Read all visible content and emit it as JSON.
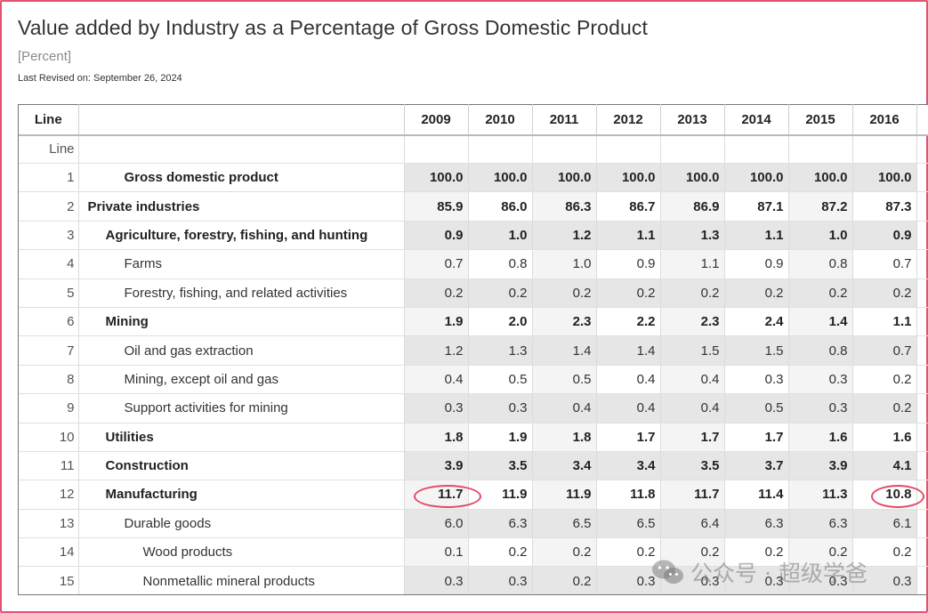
{
  "page": {
    "title": "Value added by Industry as a Percentage of Gross Domestic Product",
    "units": "[Percent]",
    "last_revised": "Last Revised on: September 26, 2024"
  },
  "table": {
    "header_line": "Line",
    "header_desc": "",
    "years": [
      "2009",
      "2010",
      "2011",
      "2012",
      "2013",
      "2014",
      "2015",
      "2016"
    ],
    "subheader_line": "Line",
    "rows": [
      {
        "line": "1",
        "desc": "Gross domestic product",
        "level": 2,
        "bold": true,
        "values": [
          "100.0",
          "100.0",
          "100.0",
          "100.0",
          "100.0",
          "100.0",
          "100.0",
          "100.0"
        ]
      },
      {
        "line": "2",
        "desc": "Private industries",
        "level": 0,
        "bold": true,
        "values": [
          "85.9",
          "86.0",
          "86.3",
          "86.7",
          "86.9",
          "87.1",
          "87.2",
          "87.3"
        ]
      },
      {
        "line": "3",
        "desc": "Agriculture, forestry, fishing, and hunting",
        "level": 1,
        "bold": true,
        "values": [
          "0.9",
          "1.0",
          "1.2",
          "1.1",
          "1.3",
          "1.1",
          "1.0",
          "0.9"
        ]
      },
      {
        "line": "4",
        "desc": "Farms",
        "level": 2,
        "bold": false,
        "values": [
          "0.7",
          "0.8",
          "1.0",
          "0.9",
          "1.1",
          "0.9",
          "0.8",
          "0.7"
        ]
      },
      {
        "line": "5",
        "desc": "Forestry, fishing, and related activities",
        "level": 2,
        "bold": false,
        "values": [
          "0.2",
          "0.2",
          "0.2",
          "0.2",
          "0.2",
          "0.2",
          "0.2",
          "0.2"
        ]
      },
      {
        "line": "6",
        "desc": "Mining",
        "level": 1,
        "bold": true,
        "values": [
          "1.9",
          "2.0",
          "2.3",
          "2.2",
          "2.3",
          "2.4",
          "1.4",
          "1.1"
        ]
      },
      {
        "line": "7",
        "desc": "Oil and gas extraction",
        "level": 2,
        "bold": false,
        "values": [
          "1.2",
          "1.3",
          "1.4",
          "1.4",
          "1.5",
          "1.5",
          "0.8",
          "0.7"
        ]
      },
      {
        "line": "8",
        "desc": "Mining, except oil and gas",
        "level": 2,
        "bold": false,
        "values": [
          "0.4",
          "0.5",
          "0.5",
          "0.4",
          "0.4",
          "0.3",
          "0.3",
          "0.2"
        ]
      },
      {
        "line": "9",
        "desc": "Support activities for mining",
        "level": 2,
        "bold": false,
        "values": [
          "0.3",
          "0.3",
          "0.4",
          "0.4",
          "0.4",
          "0.5",
          "0.3",
          "0.2"
        ]
      },
      {
        "line": "10",
        "desc": "Utilities",
        "level": 1,
        "bold": true,
        "values": [
          "1.8",
          "1.9",
          "1.8",
          "1.7",
          "1.7",
          "1.7",
          "1.6",
          "1.6"
        ]
      },
      {
        "line": "11",
        "desc": "Construction",
        "level": 1,
        "bold": true,
        "values": [
          "3.9",
          "3.5",
          "3.4",
          "3.4",
          "3.5",
          "3.7",
          "3.9",
          "4.1"
        ]
      },
      {
        "line": "12",
        "desc": "Manufacturing",
        "level": 1,
        "bold": true,
        "values": [
          "11.7",
          "11.9",
          "11.9",
          "11.8",
          "11.7",
          "11.4",
          "11.3",
          "10.8"
        ]
      },
      {
        "line": "13",
        "desc": "Durable goods",
        "level": 2,
        "bold": false,
        "values": [
          "6.0",
          "6.3",
          "6.5",
          "6.5",
          "6.4",
          "6.3",
          "6.3",
          "6.1"
        ]
      },
      {
        "line": "14",
        "desc": "Wood products",
        "level": 3,
        "bold": false,
        "values": [
          "0.1",
          "0.2",
          "0.2",
          "0.2",
          "0.2",
          "0.2",
          "0.2",
          "0.2"
        ]
      },
      {
        "line": "15",
        "desc": "Nonmetallic mineral products",
        "level": 3,
        "bold": false,
        "values": [
          "0.3",
          "0.3",
          "0.2",
          "0.3",
          "0.3",
          "0.3",
          "0.3",
          "0.3"
        ]
      }
    ]
  },
  "watermark": {
    "text": "公众号 · 超级学爸",
    "icon": "wechat-icon"
  },
  "colors": {
    "frame": "#e2546f",
    "highlight_ring": "#e44a66",
    "shade": "#e8e8e8"
  }
}
